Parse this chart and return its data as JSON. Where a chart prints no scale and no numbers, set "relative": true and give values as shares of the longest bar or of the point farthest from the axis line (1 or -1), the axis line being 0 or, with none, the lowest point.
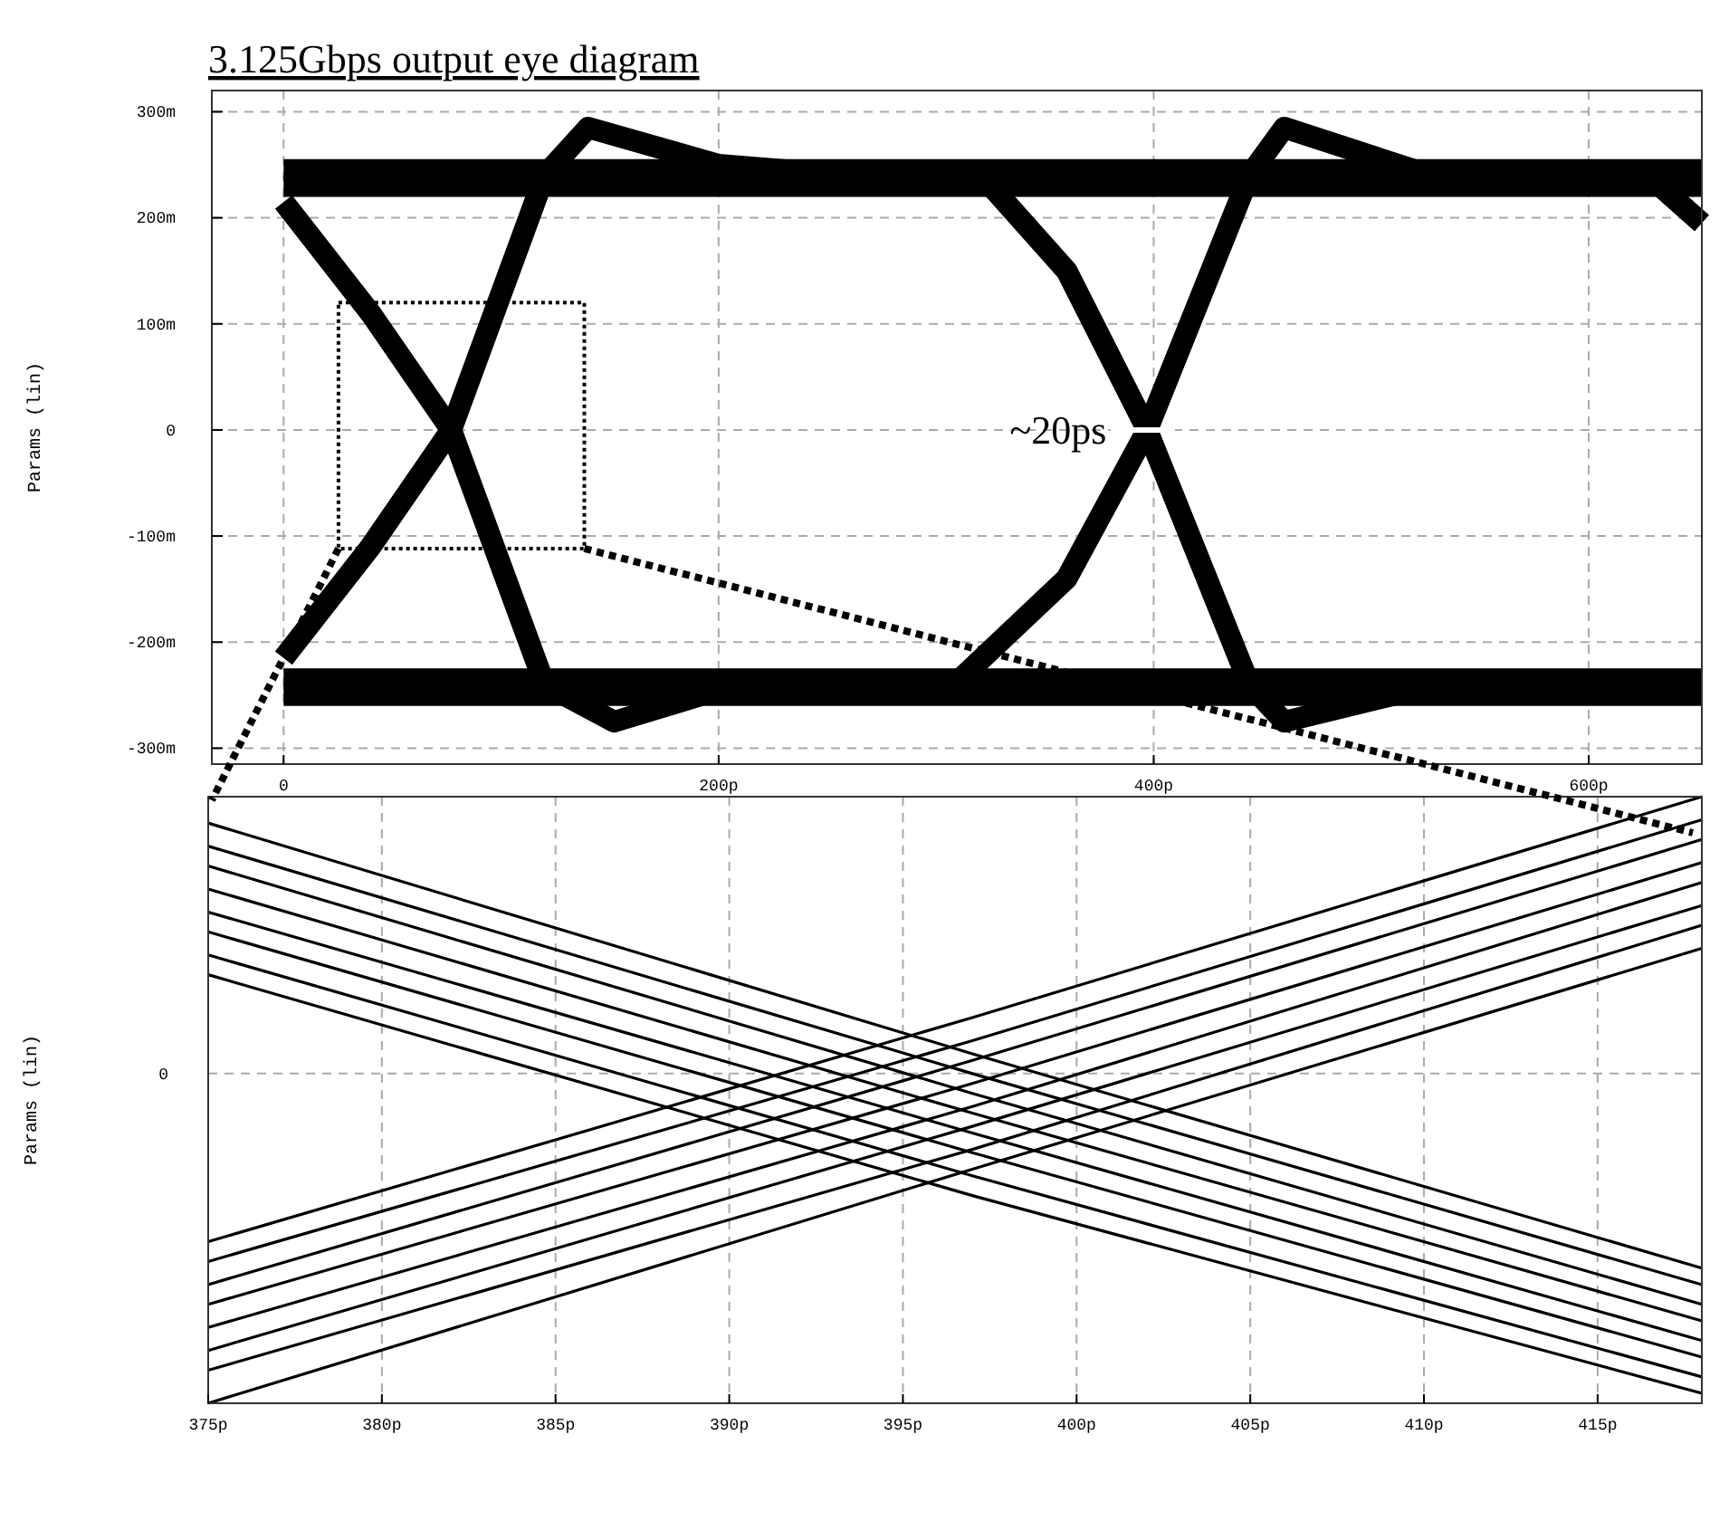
{
  "chart_data": [
    {
      "type": "line",
      "title": "3.125Gbps output eye diagram",
      "ylabel": "Params (lin)",
      "xlim": [
        -33,
        652
      ],
      "ylim": [
        -315,
        320
      ],
      "xticks": [
        0,
        {
          "value": 200,
          "label": "200p"
        },
        {
          "value": 400,
          "label": "400p"
        },
        {
          "value": 600,
          "label": "600p"
        }
      ],
      "yticks": [
        {
          "value": -300,
          "label": "-300m"
        },
        {
          "value": -200,
          "label": "-200m"
        },
        {
          "value": -100,
          "label": "-100m"
        },
        0,
        {
          "value": 100,
          "label": "100m"
        },
        {
          "value": 200,
          "label": "200m"
        },
        {
          "value": 300,
          "label": "300m"
        }
      ],
      "grid": true,
      "annotations": [
        {
          "text": "~20ps",
          "x": 395,
          "y": 0
        }
      ],
      "series": [
        {
          "color": "#000000",
          "x": [
            0,
            652
          ],
          "values": [
            245,
            245
          ]
        },
        {
          "color": "#000000",
          "x": [
            0,
            652
          ],
          "values": [
            230,
            230
          ]
        },
        {
          "color": "#000000",
          "x": [
            0,
            652
          ],
          "values": [
            -235,
            -235
          ]
        },
        {
          "color": "#000000",
          "x": [
            0,
            652
          ],
          "values": [
            -250,
            -250
          ]
        },
        {
          "color": "#000000",
          "x": [
            0,
            40,
            77,
            120,
            152,
            200
          ],
          "values": [
            215,
            110,
            0,
            -240,
            -275,
            -245
          ]
        },
        {
          "color": "#000000",
          "x": [
            0,
            40,
            77,
            120,
            140,
            200,
            260
          ],
          "values": [
            -215,
            -110,
            0,
            240,
            285,
            250,
            240
          ]
        },
        {
          "color": "#000000",
          "x": [
            300,
            323,
            360,
            397,
            444,
            460,
            520
          ],
          "values": [
            240,
            235,
            150,
            0,
            -240,
            -275,
            -245
          ]
        },
        {
          "color": "#000000",
          "x": [
            300,
            311,
            360,
            397,
            444,
            460,
            520
          ],
          "values": [
            -240,
            -235,
            -140,
            0,
            240,
            285,
            245
          ]
        },
        {
          "color": "#000000",
          "x": [
            600,
            630,
            652
          ],
          "values": [
            240,
            235,
            195
          ]
        }
      ]
    },
    {
      "type": "line",
      "ylabel": "Params (lin)",
      "xlim": [
        375,
        418
      ],
      "relative": true,
      "xticks": [
        {
          "value": 375,
          "label": "375p"
        },
        {
          "value": 380,
          "label": "380p"
        },
        {
          "value": 385,
          "label": "385p"
        },
        {
          "value": 390,
          "label": "390p"
        },
        {
          "value": 395,
          "label": "395p"
        },
        {
          "value": 400,
          "label": "400p"
        },
        {
          "value": 405,
          "label": "405p"
        },
        {
          "value": 410,
          "label": "410p"
        },
        {
          "value": 415,
          "label": "415p"
        }
      ],
      "grid": "x",
      "ref_lines": [
        {
          "axis": "y",
          "value": 0,
          "label": "0"
        }
      ],
      "series": [
        {
          "color": "#000000",
          "x": [
            375,
            397,
            418
          ],
          "values": [
            0.76,
            0.06,
            -0.59
          ]
        },
        {
          "color": "#000000",
          "x": [
            375,
            397,
            418
          ],
          "values": [
            0.69,
            0.0,
            -0.64
          ]
        },
        {
          "color": "#000000",
          "x": [
            375,
            397,
            418
          ],
          "values": [
            0.63,
            -0.06,
            -0.7
          ]
        },
        {
          "color": "#000000",
          "x": [
            375,
            397,
            418
          ],
          "values": [
            0.56,
            -0.12,
            -0.75
          ]
        },
        {
          "color": "#000000",
          "x": [
            375,
            397,
            418
          ],
          "values": [
            0.49,
            -0.18,
            -0.81
          ]
        },
        {
          "color": "#000000",
          "x": [
            375,
            397,
            418
          ],
          "values": [
            0.43,
            -0.24,
            -0.86
          ]
        },
        {
          "color": "#000000",
          "x": [
            375,
            397,
            418
          ],
          "values": [
            0.36,
            -0.31,
            -0.92
          ]
        },
        {
          "color": "#000000",
          "x": [
            375,
            397,
            418
          ],
          "values": [
            0.3,
            -0.37,
            -0.97
          ]
        },
        {
          "color": "#000000",
          "x": [
            375,
            397,
            418
          ],
          "values": [
            -0.51,
            0.17,
            0.84
          ]
        },
        {
          "color": "#000000",
          "x": [
            375,
            397,
            418
          ],
          "values": [
            -0.57,
            0.1,
            0.77
          ]
        },
        {
          "color": "#000000",
          "x": [
            375,
            397,
            418
          ],
          "values": [
            -0.64,
            0.04,
            0.71
          ]
        },
        {
          "color": "#000000",
          "x": [
            375,
            397,
            418
          ],
          "values": [
            -0.7,
            -0.03,
            0.64
          ]
        },
        {
          "color": "#000000",
          "x": [
            375,
            397,
            418
          ],
          "values": [
            -0.77,
            -0.1,
            0.58
          ]
        },
        {
          "color": "#000000",
          "x": [
            375,
            397,
            418
          ],
          "values": [
            -0.84,
            -0.16,
            0.51
          ]
        },
        {
          "color": "#000000",
          "x": [
            375,
            397,
            418
          ],
          "values": [
            -0.9,
            -0.23,
            0.45
          ]
        },
        {
          "color": "#000000",
          "x": [
            375,
            397,
            418
          ],
          "values": [
            -1.0,
            -0.29,
            0.38
          ]
        }
      ]
    }
  ]
}
